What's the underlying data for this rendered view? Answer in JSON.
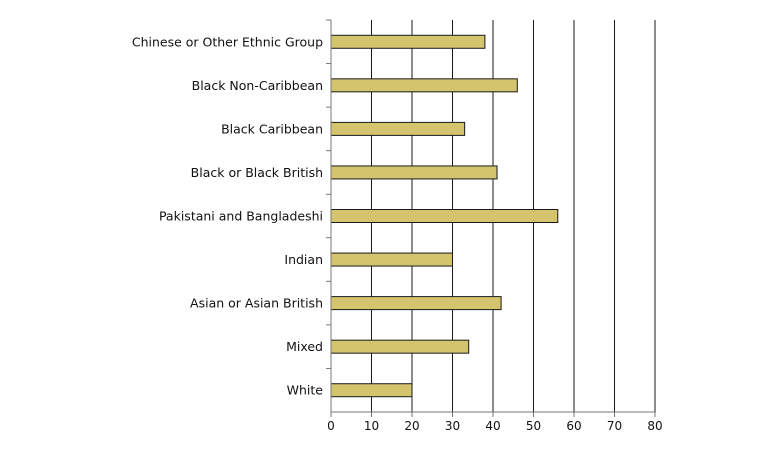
{
  "chart_data": {
    "type": "bar",
    "orientation": "horizontal",
    "categories": [
      "Chinese or Other Ethnic Group",
      "Black Non-Caribbean",
      "Black Caribbean",
      "Black or Black British",
      "Pakistani and Bangladeshi",
      "Indian",
      "Asian or Asian British",
      "Mixed",
      "White"
    ],
    "values": [
      38,
      46,
      33,
      41,
      56,
      30,
      42,
      34,
      20
    ],
    "xlim": [
      0,
      80
    ],
    "xticks": [
      "0",
      "10",
      "20",
      "30",
      "40",
      "50",
      "60",
      "70",
      "80"
    ],
    "grid": "vertical",
    "legend": "none",
    "bar_color": "#d4c46e",
    "bar_edge_color": "#1a1a1a"
  }
}
